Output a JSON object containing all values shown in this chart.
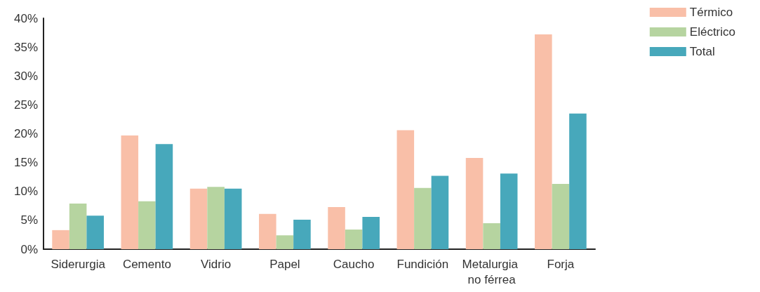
{
  "chart_data": {
    "type": "bar",
    "categories": [
      "Siderurgia",
      "Cemento",
      "Vidrio",
      "Papel",
      "Caucho",
      "Fundición",
      "Metalurgia no férrea",
      "Forja"
    ],
    "series": [
      {
        "name": "Térmico",
        "color": "#f9bfa8",
        "values": [
          3.3,
          19.7,
          10.5,
          6.1,
          7.3,
          20.6,
          15.8,
          37.2
        ]
      },
      {
        "name": "Eléctrico",
        "color": "#b6d4a0",
        "values": [
          7.9,
          8.3,
          10.8,
          2.4,
          3.4,
          10.6,
          4.5,
          11.3
        ]
      },
      {
        "name": "Total",
        "color": "#47a8bb",
        "values": [
          5.8,
          18.2,
          10.5,
          5.1,
          5.6,
          12.7,
          13.1,
          23.5
        ]
      }
    ],
    "ylim": [
      0,
      40
    ],
    "yticks": [
      {
        "value": 0,
        "label": "0%"
      },
      {
        "value": 5,
        "label": "5%"
      },
      {
        "value": 10,
        "label": "10%"
      },
      {
        "value": 15,
        "label": "15%"
      },
      {
        "value": 20,
        "label": "20%"
      },
      {
        "value": 25,
        "label": "25%"
      },
      {
        "value": 30,
        "label": "30%"
      },
      {
        "value": 35,
        "label": "35%"
      },
      {
        "value": 40,
        "label": "40%"
      }
    ],
    "grid": false,
    "legend": "top right"
  }
}
